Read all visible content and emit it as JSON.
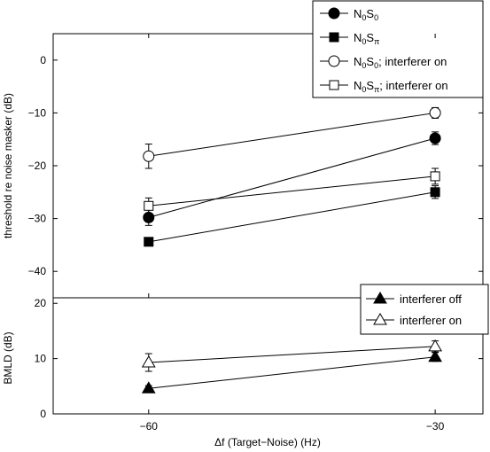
{
  "chart_data": [
    {
      "type": "line",
      "panel": "top",
      "xlabel": "",
      "ylabel": "threshold re noise masker (dB)",
      "x": [
        -60,
        -30
      ],
      "xlim": [
        -70,
        -25
      ],
      "ylim": [
        -45,
        5
      ],
      "yticks": [
        0,
        -10,
        -20,
        -30,
        -40
      ],
      "legend_position": "top-right",
      "series": [
        {
          "name": "N0S0",
          "label_main": "N",
          "label_sub1": "0",
          "label_mid": "S",
          "label_sub2": "0",
          "label_suffix": "",
          "marker": "circle",
          "filled": true,
          "values": [
            -29.8,
            -14.8
          ],
          "err": [
            1.5,
            1.2
          ]
        },
        {
          "name": "N0Sπ",
          "label_main": "N",
          "label_sub1": "0",
          "label_mid": "S",
          "label_sub2": "π",
          "label_suffix": "",
          "marker": "square",
          "filled": true,
          "values": [
            -34.4,
            -25.0
          ],
          "err": [
            0.6,
            1.2
          ]
        },
        {
          "name": "N0S0; interferer on",
          "label_main": "N",
          "label_sub1": "0",
          "label_mid": "S",
          "label_sub2": "0",
          "label_suffix": "; interferer on",
          "marker": "circle",
          "filled": false,
          "values": [
            -18.2,
            -10.0
          ],
          "err": [
            2.3,
            1.0
          ]
        },
        {
          "name": "N0Sπ; interferer on",
          "label_main": "N",
          "label_sub1": "0",
          "label_mid": "S",
          "label_sub2": "π",
          "label_suffix": "; interferer on",
          "marker": "square",
          "filled": false,
          "values": [
            -27.6,
            -22.0
          ],
          "err": [
            1.5,
            1.5
          ]
        }
      ]
    },
    {
      "type": "line",
      "panel": "bottom",
      "xlabel": "Δf (Target−Noise) (Hz)",
      "ylabel": "BMLD (dB)",
      "x": [
        -60,
        -30
      ],
      "xlim": [
        -70,
        -25
      ],
      "ylim": [
        0,
        21
      ],
      "yticks": [
        0,
        10,
        20
      ],
      "xticks": [
        -60,
        -30
      ],
      "xtick_labels": [
        "−60",
        "−30"
      ],
      "legend_position": "top-right",
      "series": [
        {
          "name": "interferer off",
          "marker": "triangle",
          "filled": true,
          "values": [
            4.6,
            10.3
          ],
          "err": [
            0.5,
            0.8
          ]
        },
        {
          "name": "interferer on",
          "marker": "triangle",
          "filled": false,
          "values": [
            9.3,
            12.2
          ],
          "err": [
            1.6,
            1.0
          ]
        }
      ]
    }
  ]
}
